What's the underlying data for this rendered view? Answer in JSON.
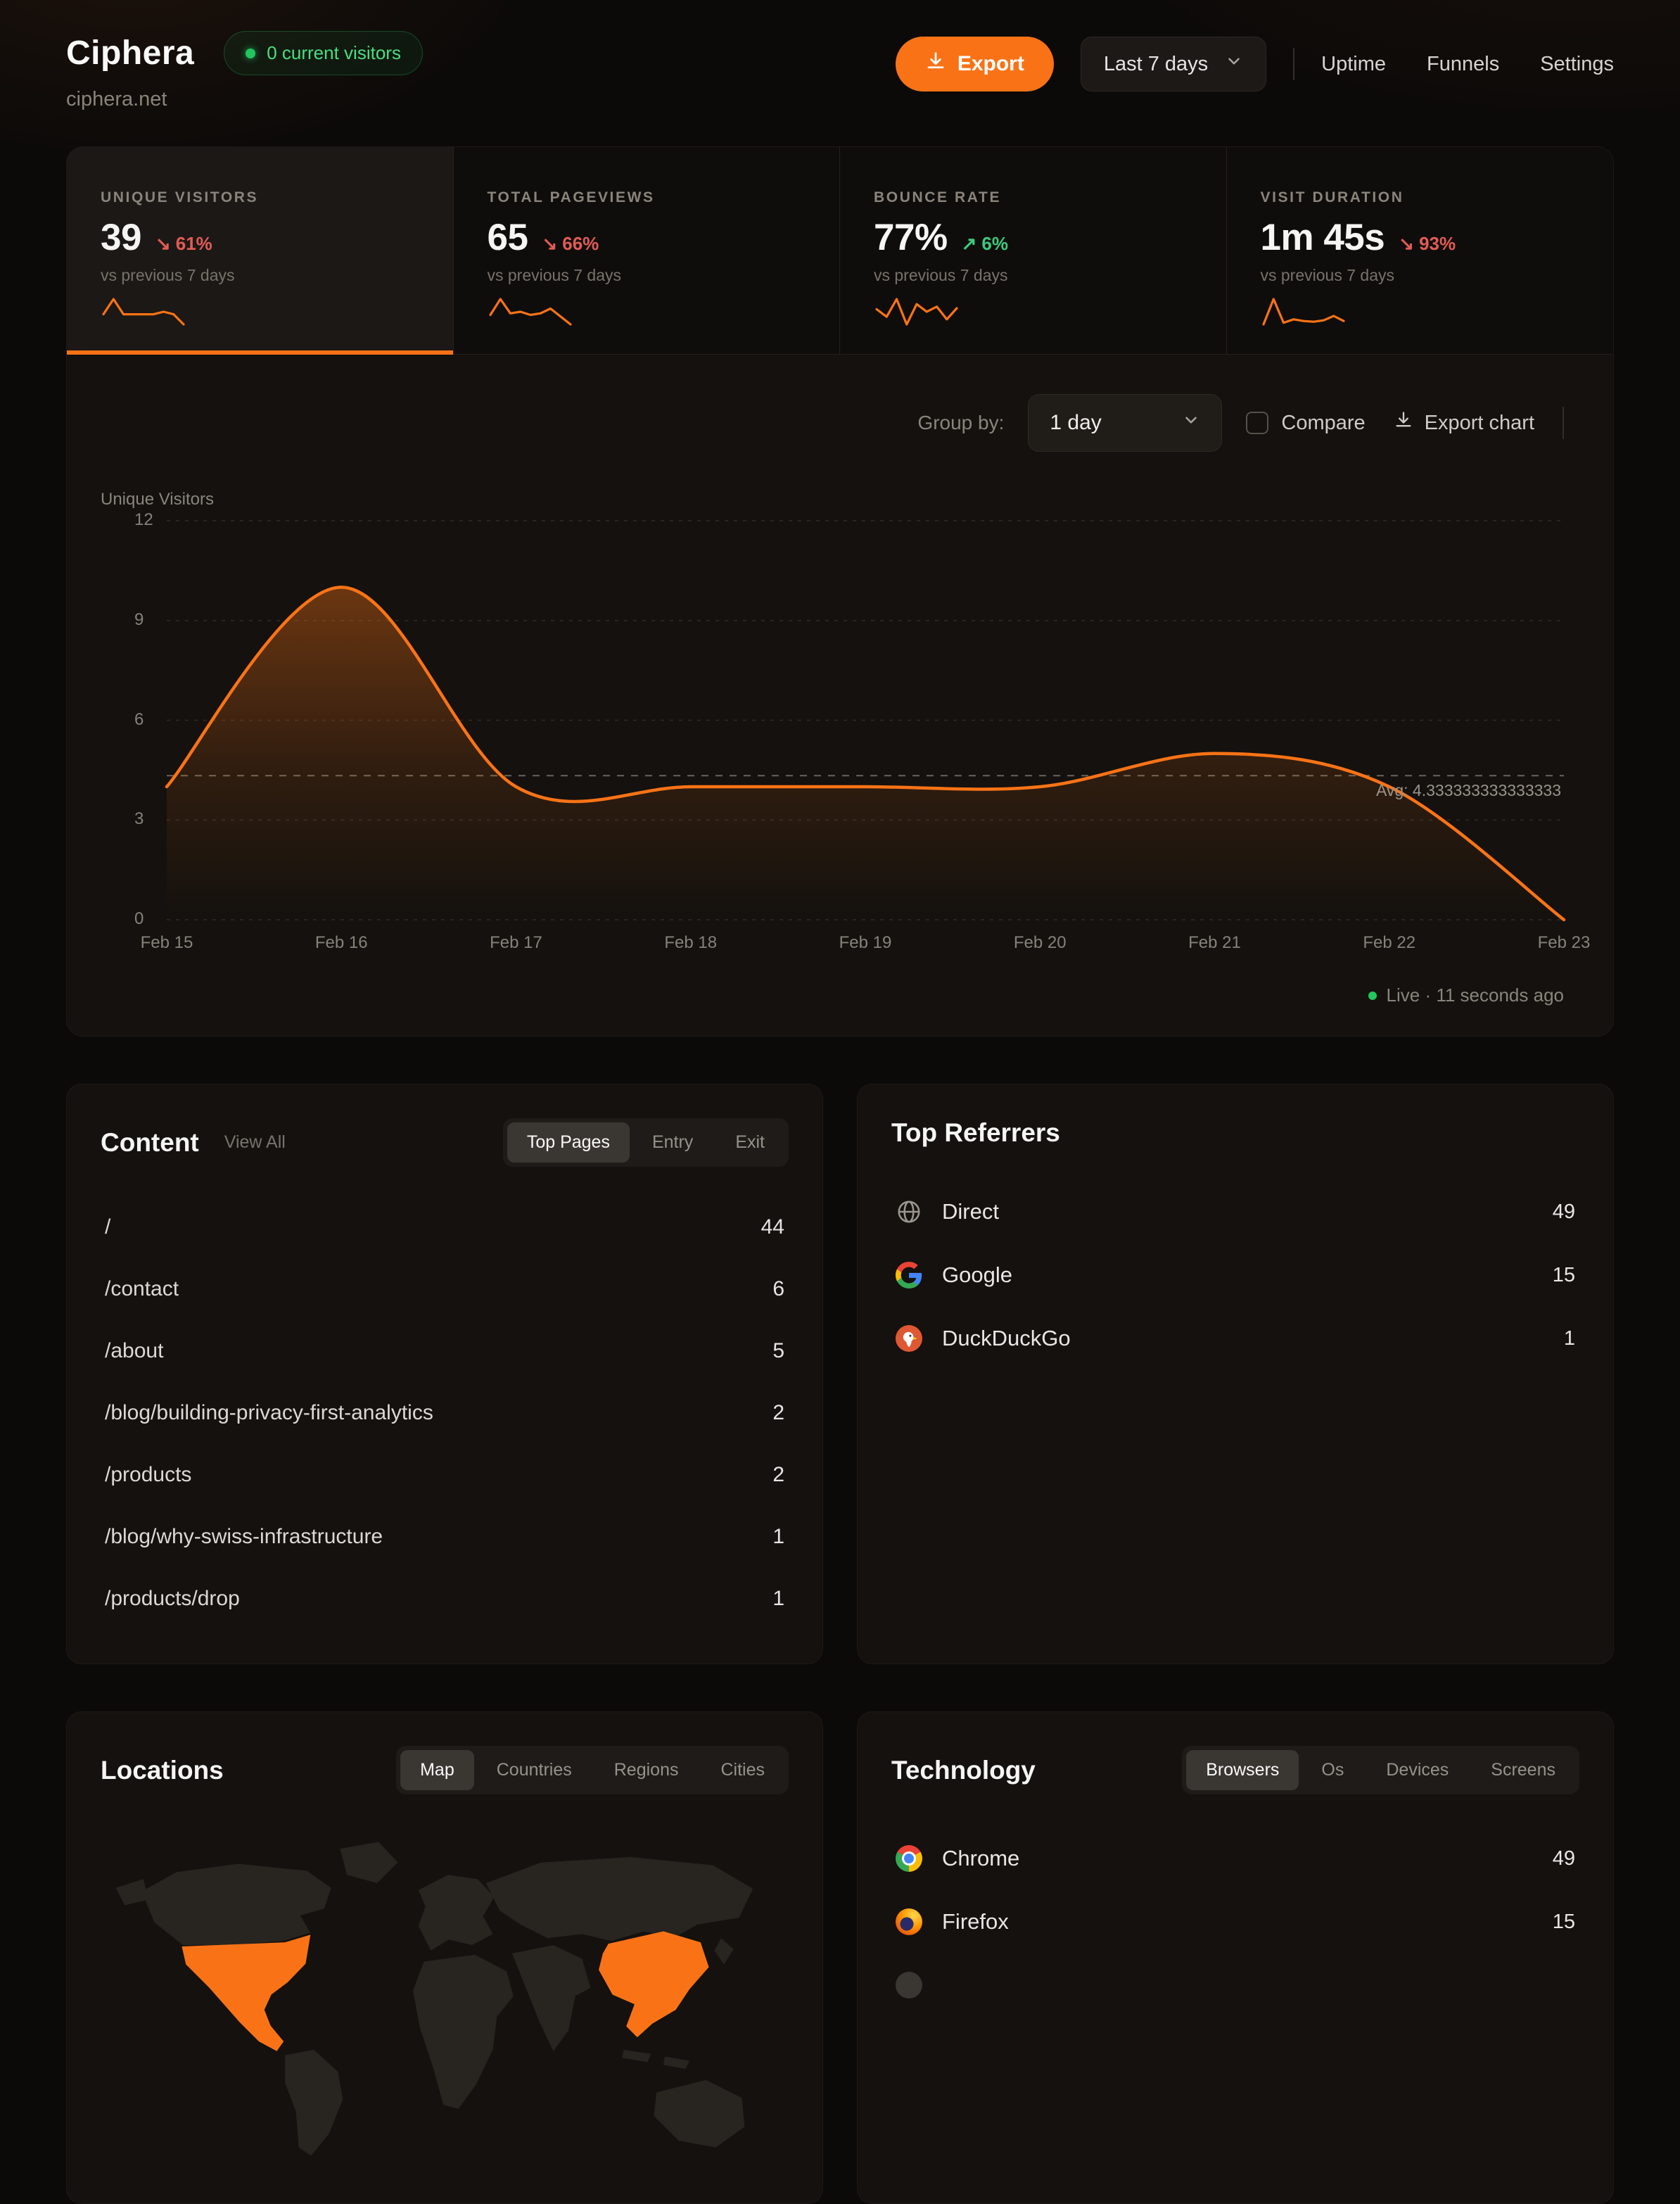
{
  "header": {
    "site_name": "Ciphera",
    "site_domain": "ciphera.net",
    "visitors_badge": "0 current visitors",
    "export_label": "Export",
    "date_range": "Last 7 days",
    "nav": [
      "Uptime",
      "Funnels",
      "Settings"
    ]
  },
  "stats": {
    "cards": [
      {
        "label": "UNIQUE VISITORS",
        "value": "39",
        "arrow": "↘",
        "delta": "61%",
        "trend": "down",
        "note": "vs previous 7 days",
        "spark": [
          4,
          10,
          4,
          4,
          4,
          4,
          5,
          4,
          0
        ]
      },
      {
        "label": "TOTAL PAGEVIEWS",
        "value": "65",
        "arrow": "↘",
        "delta": "66%",
        "trend": "down",
        "note": "vs previous 7 days",
        "spark": [
          6,
          16,
          7,
          8,
          6,
          7,
          10,
          5,
          0
        ]
      },
      {
        "label": "BOUNCE RATE",
        "value": "77%",
        "arrow": "↗",
        "delta": "6%",
        "trend": "up",
        "note": "vs previous 7 days",
        "spark": [
          75,
          60,
          95,
          45,
          85,
          70,
          80,
          55,
          77
        ]
      },
      {
        "label": "VISIT DURATION",
        "value": "1m 45s",
        "arrow": "↘",
        "delta": "93%",
        "trend": "down",
        "note": "vs previous 7 days",
        "spark": [
          30,
          105,
          35,
          45,
          40,
          38,
          42,
          55,
          40
        ]
      }
    ]
  },
  "chart_controls": {
    "group_by_label": "Group by:",
    "group_by_value": "1 day",
    "compare_label": "Compare",
    "export_chart_label": "Export chart"
  },
  "chart_data": {
    "type": "area",
    "title": "Unique Visitors",
    "x": [
      "Feb 15",
      "Feb 16",
      "Feb 17",
      "Feb 18",
      "Feb 19",
      "Feb 20",
      "Feb 21",
      "Feb 22",
      "Feb 23"
    ],
    "values": [
      4,
      10,
      4,
      4,
      4,
      4,
      5,
      4,
      0
    ],
    "ylim": [
      0,
      12
    ],
    "yticks": [
      0,
      3,
      6,
      9,
      12
    ],
    "avg": 4.333333333333333,
    "avg_label": "Avg: 4.333333333333333",
    "line_color": "#f97316",
    "grid": "dashed horizontal",
    "legend": "none"
  },
  "live_label": "Live · 11 seconds ago",
  "content_panel": {
    "title": "Content",
    "view_all": "View All",
    "tabs": [
      "Top Pages",
      "Entry",
      "Exit"
    ],
    "active_tab": "Top Pages",
    "rows": [
      {
        "page": "/",
        "value": "44"
      },
      {
        "page": "/contact",
        "value": "6"
      },
      {
        "page": "/about",
        "value": "5"
      },
      {
        "page": "/blog/building-privacy-first-analytics",
        "value": "2"
      },
      {
        "page": "/products",
        "value": "2"
      },
      {
        "page": "/blog/why-swiss-infrastructure",
        "value": "1"
      },
      {
        "page": "/products/drop",
        "value": "1"
      }
    ]
  },
  "referrers_panel": {
    "title": "Top Referrers",
    "rows": [
      {
        "name": "Direct",
        "value": "49",
        "icon": "globe-icon"
      },
      {
        "name": "Google",
        "value": "15",
        "icon": "google-icon"
      },
      {
        "name": "DuckDuckGo",
        "value": "1",
        "icon": "duckduckgo-icon"
      }
    ]
  },
  "locations_panel": {
    "title": "Locations",
    "tabs": [
      "Map",
      "Countries",
      "Regions",
      "Cities"
    ],
    "active_tab": "Map",
    "map_highlight_color": "#f97316",
    "highlighted_regions": [
      "United States",
      "China"
    ]
  },
  "technology_panel": {
    "title": "Technology",
    "tabs": [
      "Browsers",
      "Os",
      "Devices",
      "Screens"
    ],
    "active_tab": "Browsers",
    "rows": [
      {
        "name": "Chrome",
        "value": "49",
        "icon": "chrome-icon"
      },
      {
        "name": "Firefox",
        "value": "15",
        "icon": "firefox-icon"
      }
    ]
  },
  "colors": {
    "accent": "#f97316",
    "positive": "#3ec97c",
    "negative": "#e25c55",
    "live_green": "#22c55e"
  }
}
